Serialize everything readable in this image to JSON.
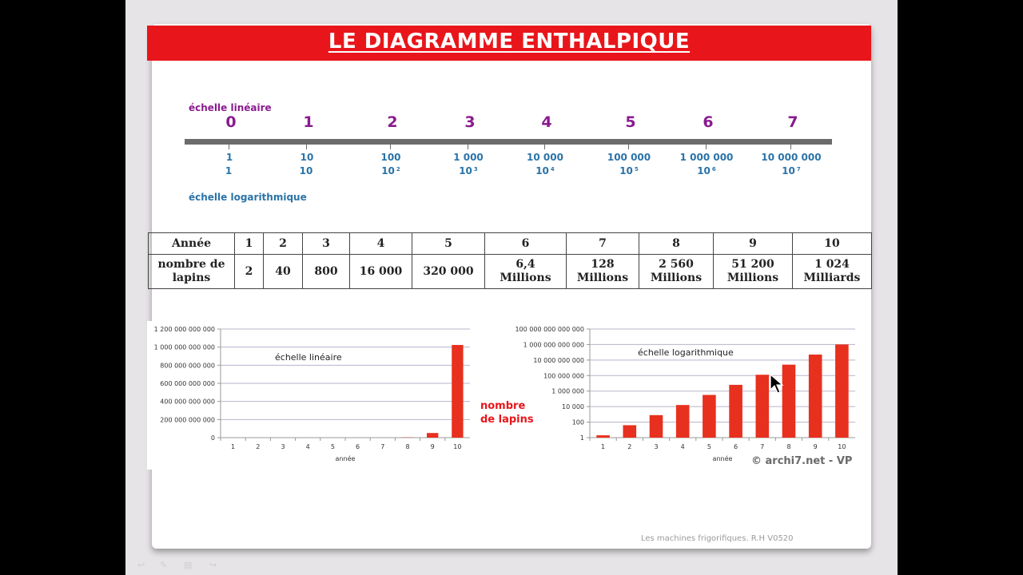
{
  "slide": {
    "title": "LE DIAGRAMME ENTHALPIQUE",
    "footer": "Les machines frigorifiques. R.H V0520",
    "credit": "© archi7.net - VP",
    "bars_label_line1": "nombre",
    "bars_label_line2": "de lapins"
  },
  "scales": {
    "linear_label": "échelle linéaire",
    "log_label": "échelle logarithmique",
    "linear_values": [
      "0",
      "1",
      "2",
      "3",
      "4",
      "5",
      "6",
      "7"
    ],
    "log_values": [
      "1",
      "10",
      "100",
      "1 000",
      "10 000",
      "100 000",
      "1 000 000",
      "10 000 000"
    ],
    "power_base": [
      "1",
      "10",
      "10",
      "10",
      "10",
      "10",
      "10",
      "10"
    ],
    "power_exp": [
      "",
      "",
      "2",
      "3",
      "4",
      "5",
      "6",
      "7"
    ]
  },
  "table": {
    "header": [
      "Année",
      "1",
      "2",
      "3",
      "4",
      "5",
      "6",
      "7",
      "8",
      "9",
      "10"
    ],
    "row_label": [
      "nombre de",
      "lapins"
    ],
    "values": [
      [
        "2"
      ],
      [
        "40"
      ],
      [
        "800"
      ],
      [
        "16 000"
      ],
      [
        "320 000"
      ],
      [
        "6,4",
        "Millions"
      ],
      [
        "128",
        "Millions"
      ],
      [
        "2 560",
        "Millions"
      ],
      [
        "51 200",
        "Millions"
      ],
      [
        "1 024",
        "Milliards"
      ]
    ]
  },
  "chart_data": [
    {
      "type": "bar",
      "title": "échelle linéaire",
      "xlabel": "année",
      "ylabel": "",
      "categories": [
        "1",
        "2",
        "3",
        "4",
        "5",
        "6",
        "7",
        "8",
        "9",
        "10"
      ],
      "values": [
        2,
        40,
        800,
        16000,
        320000,
        6400000,
        128000000,
        2560000000,
        51200000000,
        1024000000000
      ],
      "ylim": [
        0,
        1200000000000
      ],
      "yticks": [
        "0",
        "200 000 000 000",
        "400 000 000 000",
        "600 000 000 000",
        "800 000 000 000",
        "1 000 000 000 000",
        "1 200 000 000 000"
      ],
      "color": "#e8301e",
      "grid": true
    },
    {
      "type": "bar",
      "title": "échelle logarithmique",
      "xlabel": "année",
      "ylabel": "",
      "scale": "log",
      "categories": [
        "1",
        "2",
        "3",
        "4",
        "5",
        "6",
        "7",
        "8",
        "9",
        "10"
      ],
      "values": [
        2,
        40,
        800,
        16000,
        320000,
        6400000,
        128000000,
        2560000000,
        51200000000,
        1024000000000
      ],
      "ylim": [
        1,
        100000000000000
      ],
      "yticks": [
        "1",
        "100",
        "10 000",
        "1 000 000",
        "100 000 000",
        "10 000 000 000",
        "1 000 000 000 000",
        "100 000 000 000 000"
      ],
      "color": "#e8301e",
      "grid": true
    }
  ]
}
